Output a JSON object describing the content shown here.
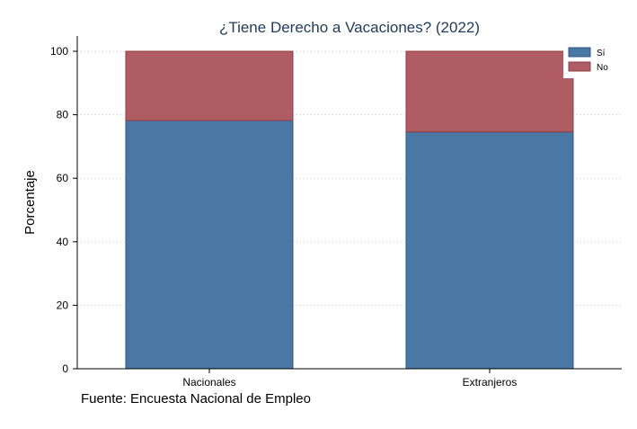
{
  "chart_data": {
    "type": "bar",
    "stacked": true,
    "title": "¿Tiene Derecho a Vacaciones? (2022)",
    "ylabel": "Porcentaje",
    "xlabel": "",
    "categories": [
      "Nacionales",
      "Extranjeros"
    ],
    "series": [
      {
        "name": "Sí",
        "values": [
          78.2,
          74.6
        ],
        "color": "#4a78a4"
      },
      {
        "name": "No",
        "values": [
          21.8,
          25.4
        ],
        "color": "#b05c63"
      }
    ],
    "ylim": [
      0,
      100
    ],
    "yticks": [
      0,
      20,
      40,
      60,
      80,
      100
    ],
    "grid": true,
    "legend_position": "top-right",
    "note": "Fuente: Encuesta Nacional de Empleo"
  }
}
